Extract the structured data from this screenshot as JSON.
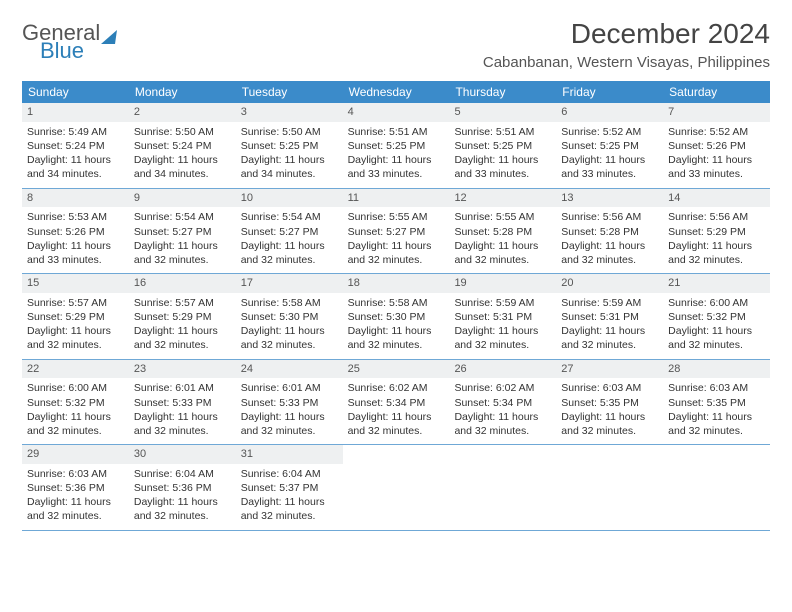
{
  "brand": {
    "general": "General",
    "blue": "Blue"
  },
  "header": {
    "title": "December 2024",
    "location": "Cabanbanan, Western Visayas, Philippines"
  },
  "colors": {
    "header_bg": "#3b8bca",
    "header_text": "#ffffff",
    "daynum_bg": "#eef0f1",
    "row_border": "#6fa8d6",
    "body_text": "#333333",
    "title_text": "#444444",
    "location_text": "#555555",
    "logo_blue": "#2c7fb8",
    "logo_gray": "#555555"
  },
  "day_names": [
    "Sunday",
    "Monday",
    "Tuesday",
    "Wednesday",
    "Thursday",
    "Friday",
    "Saturday"
  ],
  "weeks": [
    [
      {
        "n": "1",
        "sr": "Sunrise: 5:49 AM",
        "ss": "Sunset: 5:24 PM",
        "dl": "Daylight: 11 hours and 34 minutes."
      },
      {
        "n": "2",
        "sr": "Sunrise: 5:50 AM",
        "ss": "Sunset: 5:24 PM",
        "dl": "Daylight: 11 hours and 34 minutes."
      },
      {
        "n": "3",
        "sr": "Sunrise: 5:50 AM",
        "ss": "Sunset: 5:25 PM",
        "dl": "Daylight: 11 hours and 34 minutes."
      },
      {
        "n": "4",
        "sr": "Sunrise: 5:51 AM",
        "ss": "Sunset: 5:25 PM",
        "dl": "Daylight: 11 hours and 33 minutes."
      },
      {
        "n": "5",
        "sr": "Sunrise: 5:51 AM",
        "ss": "Sunset: 5:25 PM",
        "dl": "Daylight: 11 hours and 33 minutes."
      },
      {
        "n": "6",
        "sr": "Sunrise: 5:52 AM",
        "ss": "Sunset: 5:25 PM",
        "dl": "Daylight: 11 hours and 33 minutes."
      },
      {
        "n": "7",
        "sr": "Sunrise: 5:52 AM",
        "ss": "Sunset: 5:26 PM",
        "dl": "Daylight: 11 hours and 33 minutes."
      }
    ],
    [
      {
        "n": "8",
        "sr": "Sunrise: 5:53 AM",
        "ss": "Sunset: 5:26 PM",
        "dl": "Daylight: 11 hours and 33 minutes."
      },
      {
        "n": "9",
        "sr": "Sunrise: 5:54 AM",
        "ss": "Sunset: 5:27 PM",
        "dl": "Daylight: 11 hours and 32 minutes."
      },
      {
        "n": "10",
        "sr": "Sunrise: 5:54 AM",
        "ss": "Sunset: 5:27 PM",
        "dl": "Daylight: 11 hours and 32 minutes."
      },
      {
        "n": "11",
        "sr": "Sunrise: 5:55 AM",
        "ss": "Sunset: 5:27 PM",
        "dl": "Daylight: 11 hours and 32 minutes."
      },
      {
        "n": "12",
        "sr": "Sunrise: 5:55 AM",
        "ss": "Sunset: 5:28 PM",
        "dl": "Daylight: 11 hours and 32 minutes."
      },
      {
        "n": "13",
        "sr": "Sunrise: 5:56 AM",
        "ss": "Sunset: 5:28 PM",
        "dl": "Daylight: 11 hours and 32 minutes."
      },
      {
        "n": "14",
        "sr": "Sunrise: 5:56 AM",
        "ss": "Sunset: 5:29 PM",
        "dl": "Daylight: 11 hours and 32 minutes."
      }
    ],
    [
      {
        "n": "15",
        "sr": "Sunrise: 5:57 AM",
        "ss": "Sunset: 5:29 PM",
        "dl": "Daylight: 11 hours and 32 minutes."
      },
      {
        "n": "16",
        "sr": "Sunrise: 5:57 AM",
        "ss": "Sunset: 5:29 PM",
        "dl": "Daylight: 11 hours and 32 minutes."
      },
      {
        "n": "17",
        "sr": "Sunrise: 5:58 AM",
        "ss": "Sunset: 5:30 PM",
        "dl": "Daylight: 11 hours and 32 minutes."
      },
      {
        "n": "18",
        "sr": "Sunrise: 5:58 AM",
        "ss": "Sunset: 5:30 PM",
        "dl": "Daylight: 11 hours and 32 minutes."
      },
      {
        "n": "19",
        "sr": "Sunrise: 5:59 AM",
        "ss": "Sunset: 5:31 PM",
        "dl": "Daylight: 11 hours and 32 minutes."
      },
      {
        "n": "20",
        "sr": "Sunrise: 5:59 AM",
        "ss": "Sunset: 5:31 PM",
        "dl": "Daylight: 11 hours and 32 minutes."
      },
      {
        "n": "21",
        "sr": "Sunrise: 6:00 AM",
        "ss": "Sunset: 5:32 PM",
        "dl": "Daylight: 11 hours and 32 minutes."
      }
    ],
    [
      {
        "n": "22",
        "sr": "Sunrise: 6:00 AM",
        "ss": "Sunset: 5:32 PM",
        "dl": "Daylight: 11 hours and 32 minutes."
      },
      {
        "n": "23",
        "sr": "Sunrise: 6:01 AM",
        "ss": "Sunset: 5:33 PM",
        "dl": "Daylight: 11 hours and 32 minutes."
      },
      {
        "n": "24",
        "sr": "Sunrise: 6:01 AM",
        "ss": "Sunset: 5:33 PM",
        "dl": "Daylight: 11 hours and 32 minutes."
      },
      {
        "n": "25",
        "sr": "Sunrise: 6:02 AM",
        "ss": "Sunset: 5:34 PM",
        "dl": "Daylight: 11 hours and 32 minutes."
      },
      {
        "n": "26",
        "sr": "Sunrise: 6:02 AM",
        "ss": "Sunset: 5:34 PM",
        "dl": "Daylight: 11 hours and 32 minutes."
      },
      {
        "n": "27",
        "sr": "Sunrise: 6:03 AM",
        "ss": "Sunset: 5:35 PM",
        "dl": "Daylight: 11 hours and 32 minutes."
      },
      {
        "n": "28",
        "sr": "Sunrise: 6:03 AM",
        "ss": "Sunset: 5:35 PM",
        "dl": "Daylight: 11 hours and 32 minutes."
      }
    ],
    [
      {
        "n": "29",
        "sr": "Sunrise: 6:03 AM",
        "ss": "Sunset: 5:36 PM",
        "dl": "Daylight: 11 hours and 32 minutes."
      },
      {
        "n": "30",
        "sr": "Sunrise: 6:04 AM",
        "ss": "Sunset: 5:36 PM",
        "dl": "Daylight: 11 hours and 32 minutes."
      },
      {
        "n": "31",
        "sr": "Sunrise: 6:04 AM",
        "ss": "Sunset: 5:37 PM",
        "dl": "Daylight: 11 hours and 32 minutes."
      },
      null,
      null,
      null,
      null
    ]
  ]
}
